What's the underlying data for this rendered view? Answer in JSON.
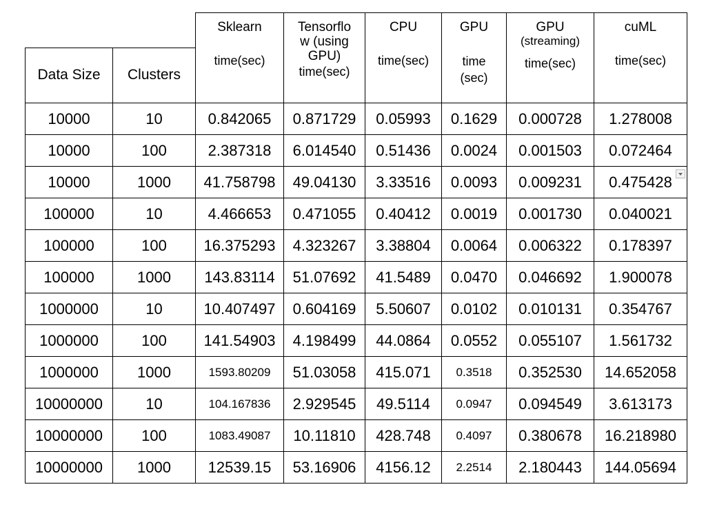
{
  "headers": {
    "data_size": "Data Size",
    "clusters": "Clusters",
    "sklearn": {
      "title": "Sklearn",
      "unit": "time(sec)"
    },
    "tensorflow": {
      "line1": "Tensorflo",
      "line2": "w (using",
      "line3": "GPU)",
      "unit": "time(sec)"
    },
    "cpu": {
      "title": "CPU",
      "unit": "time(sec)"
    },
    "gpu": {
      "title": "GPU",
      "unit1": "time",
      "unit2": "(sec)"
    },
    "gpu_streaming": {
      "title": "GPU",
      "sub": "(streaming)",
      "unit": "time(sec)"
    },
    "cuml": {
      "title": "cuML",
      "unit": "time(sec)"
    }
  },
  "rows": [
    [
      "10000",
      "10",
      "0.842065",
      "0.871729",
      "0.05993",
      "0.1629",
      "0.000728",
      "1.278008"
    ],
    [
      "10000",
      "100",
      "2.387318",
      "6.014540",
      "0.51436",
      "0.0024",
      "0.001503",
      "0.072464"
    ],
    [
      "10000",
      "1000",
      "41.758798",
      "49.04130",
      "3.33516",
      "0.0093",
      "0.009231",
      "0.475428"
    ],
    [
      "100000",
      "10",
      "4.466653",
      "0.471055",
      "0.40412",
      "0.0019",
      "0.001730",
      "0.040021"
    ],
    [
      "100000",
      "100",
      "16.375293",
      "4.323267",
      "3.38804",
      "0.0064",
      "0.006322",
      "0.178397"
    ],
    [
      "100000",
      "1000",
      "143.83114",
      "51.07692",
      "41.5489",
      "0.0470",
      "0.046692",
      "1.900078"
    ],
    [
      "1000000",
      "10",
      "10.407497",
      "0.604169",
      "5.50607",
      "0.0102",
      "0.010131",
      "0.354767"
    ],
    [
      "1000000",
      "100",
      "141.54903",
      "4.198499",
      "44.0864",
      "0.0552",
      "0.055107",
      "1.561732"
    ],
    [
      "1000000",
      "1000",
      "1593.80209",
      "51.03058",
      "415.071",
      "0.3518",
      "0.352530",
      "14.652058"
    ],
    [
      "10000000",
      "10",
      "104.167836",
      "2.929545",
      "49.5114",
      "0.0947",
      "0.094549",
      "3.613173"
    ],
    [
      "10000000",
      "100",
      "1083.49087",
      "10.11810",
      "428.748",
      "0.4097",
      "0.380678",
      "16.218980"
    ],
    [
      "10000000",
      "1000",
      "12539.15",
      "53.16906",
      "4156.12",
      "2.2514",
      "2.180443",
      "144.05694"
    ]
  ]
}
